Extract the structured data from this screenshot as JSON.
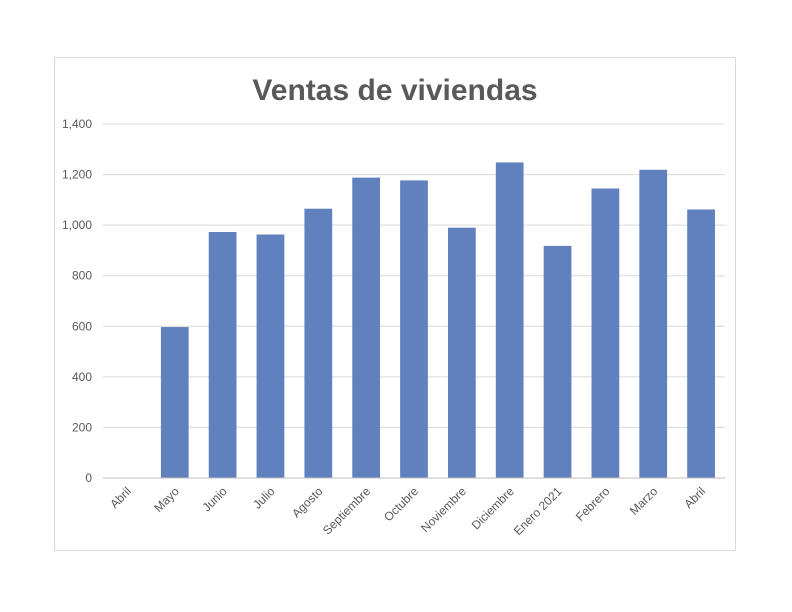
{
  "chart_data": {
    "type": "bar",
    "title": "Ventas de viviendas",
    "xlabel": "",
    "ylabel": "",
    "categories": [
      "Abril",
      "Mayo",
      "Junio",
      "Julio",
      "Agosto",
      "Septiembre",
      "Octubre",
      "Noviembre",
      "Diciembre",
      "Enero 2021",
      "Febrero",
      "Marzo",
      "Abril"
    ],
    "values": [
      0,
      597,
      973,
      963,
      1065,
      1188,
      1177,
      990,
      1248,
      918,
      1145,
      1219,
      1062
    ],
    "ylim": [
      0,
      1400
    ],
    "yticks": [
      0,
      200,
      400,
      600,
      800,
      1000,
      1200,
      1400
    ],
    "ytick_labels": [
      "0",
      "200",
      "400",
      "600",
      "800",
      "1,000",
      "1,200",
      "1,400"
    ],
    "grid": true,
    "legend": "none",
    "bar_color": "#6081bd"
  }
}
